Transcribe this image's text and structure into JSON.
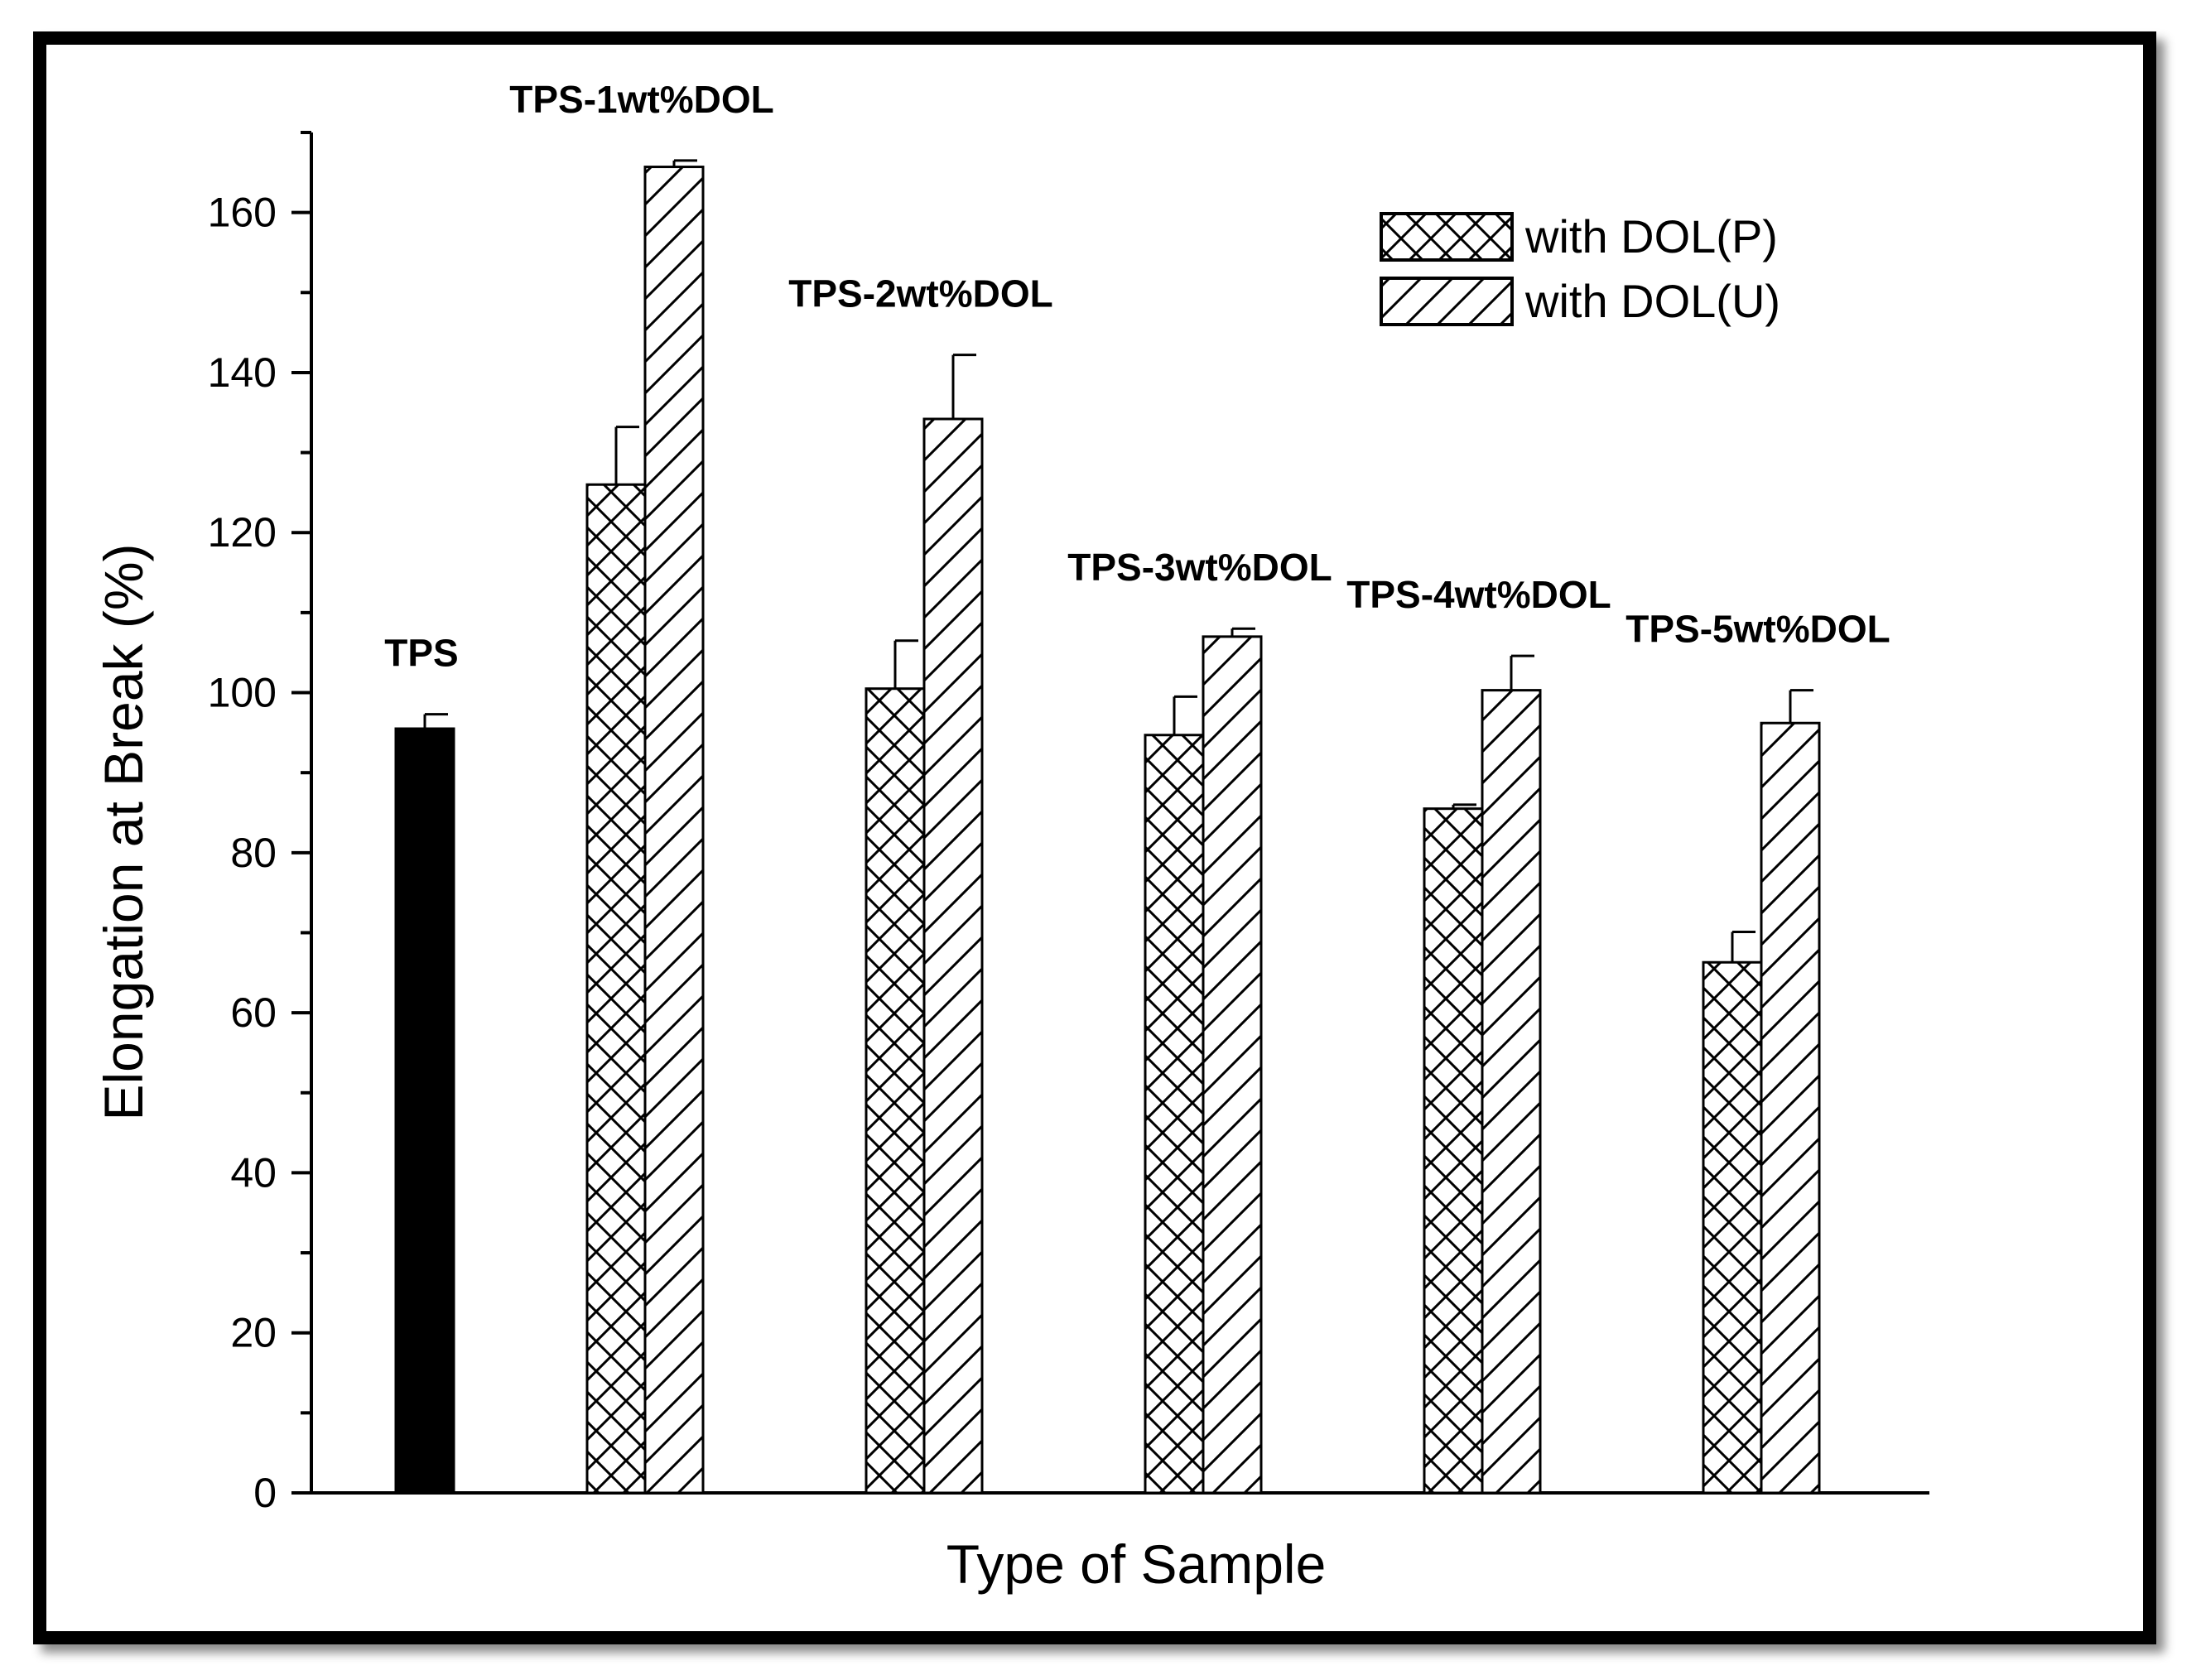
{
  "chart_data": {
    "type": "bar",
    "title": "",
    "xlabel": "Type of Sample",
    "ylabel": "Elongation at Break (%)",
    "ylim": [
      0,
      170
    ],
    "yticks": [
      0,
      20,
      40,
      60,
      80,
      100,
      120,
      140,
      160
    ],
    "grid": false,
    "legend_position": "top-right",
    "categories": [
      "TPS",
      "TPS-1wt%DOL",
      "TPS-2wt%DOL",
      "TPS-3wt%DOL",
      "TPS-4wt%DOL",
      "TPS-5wt%DOL"
    ],
    "reference": {
      "category": "TPS",
      "value": 95.5,
      "error": 1.8,
      "color": "#000000"
    },
    "series": [
      {
        "name": "with DOL(P)",
        "pattern": "crosshatch",
        "values": [
          null,
          126,
          100.5,
          94.7,
          85.5,
          66.3
        ],
        "errors": [
          null,
          7.2,
          6,
          4.8,
          0.5,
          3.8
        ]
      },
      {
        "name": "with DOL(U)",
        "pattern": "diagonal",
        "values": [
          null,
          165.7,
          134.2,
          107,
          100.3,
          96.2
        ],
        "errors": [
          null,
          0.8,
          8,
          1,
          4.3,
          4.1
        ]
      }
    ]
  }
}
